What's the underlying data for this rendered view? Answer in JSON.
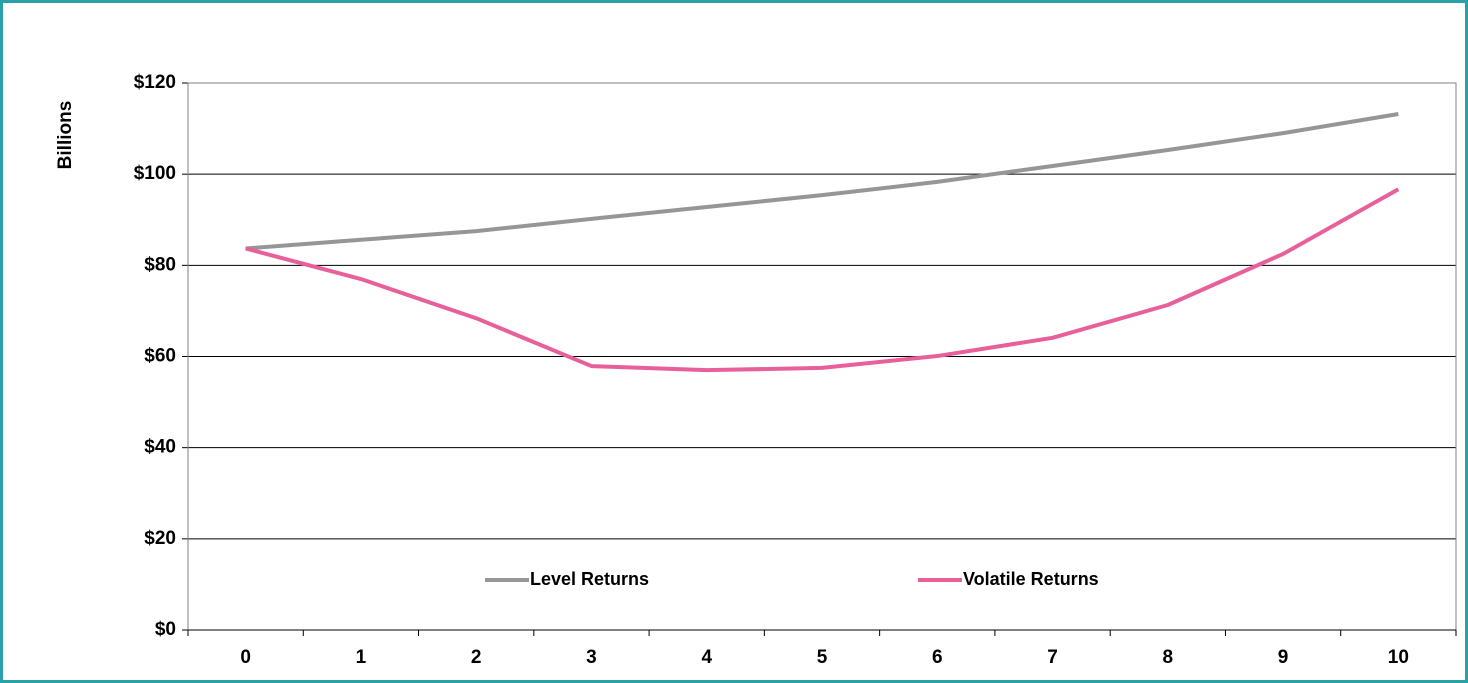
{
  "chart_data": {
    "type": "line",
    "y_label": "Billions",
    "categories": [
      "0",
      "1",
      "2",
      "3",
      "4",
      "5",
      "6",
      "7",
      "8",
      "9",
      "10"
    ],
    "series": [
      {
        "name": "Level Returns",
        "color": "#969696",
        "values": [
          83.7,
          85.6,
          87.5,
          90.2,
          92.8,
          95.4,
          98.3,
          101.8,
          105.3,
          109.0,
          113.2
        ]
      },
      {
        "name": "Volatile Returns",
        "color": "#e8609a",
        "values": [
          83.7,
          77.0,
          68.4,
          57.9,
          57.0,
          57.5,
          60.1,
          64.1,
          71.3,
          82.5,
          96.7
        ]
      }
    ],
    "ylim": [
      0,
      120
    ],
    "yticks": [
      {
        "value": 0,
        "label": "$0"
      },
      {
        "value": 20,
        "label": "$20"
      },
      {
        "value": 40,
        "label": "$40"
      },
      {
        "value": 60,
        "label": "$60"
      },
      {
        "value": 80,
        "label": "$80"
      },
      {
        "value": 100,
        "label": "$100"
      },
      {
        "value": 120,
        "label": "$120"
      }
    ],
    "grid": true,
    "legend": "bottom"
  }
}
